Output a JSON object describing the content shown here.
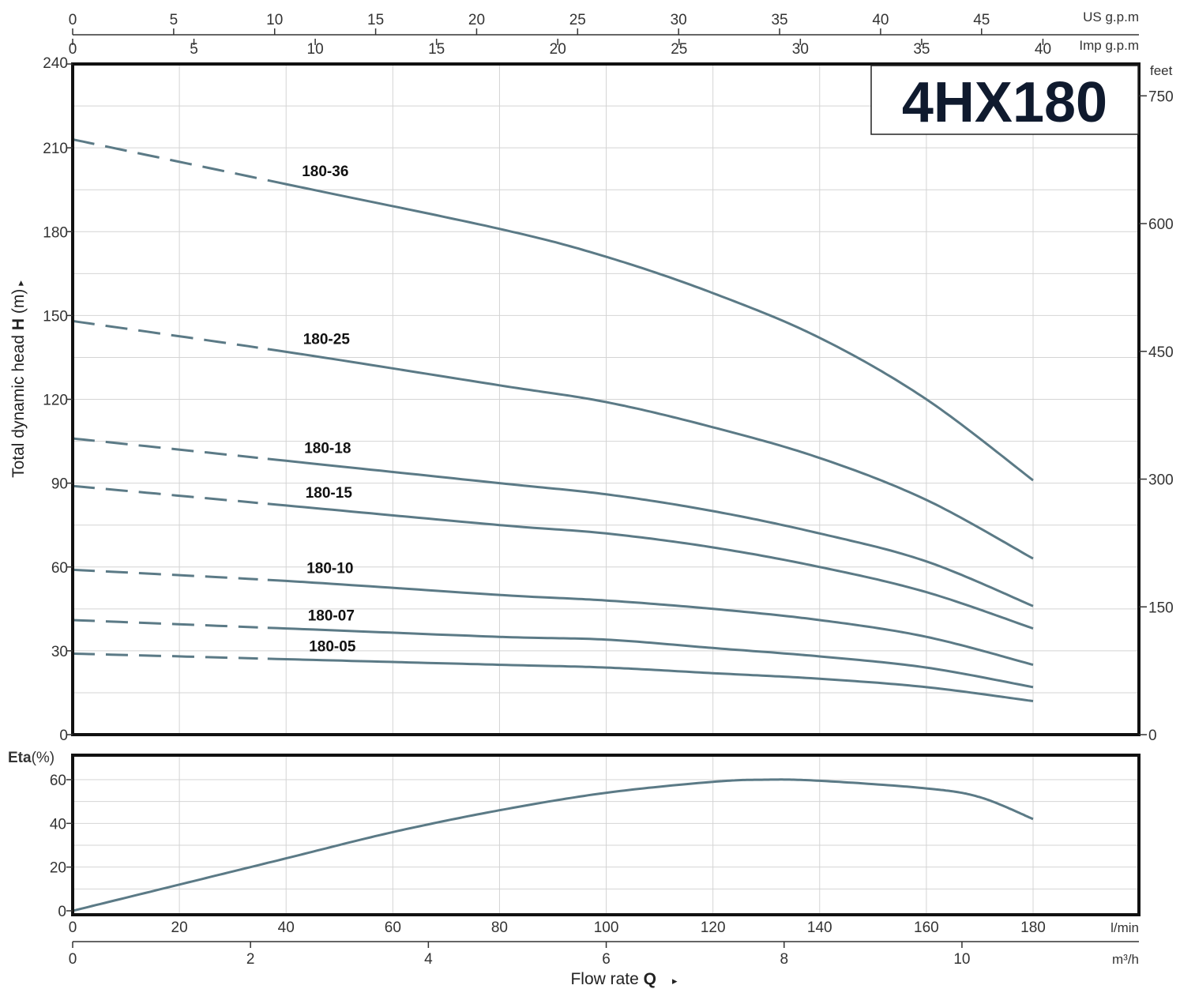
{
  "title": "4HX180",
  "chart_data": [
    {
      "type": "line",
      "panel": "head",
      "ylabel_prefix": "Total dynamic head ",
      "ylabel_bold": "H",
      "ylabel_suffix": " (m)",
      "ylabel_arrow": "▸",
      "ylim": [
        0,
        240
      ],
      "yticks": [
        0,
        30,
        60,
        90,
        120,
        150,
        180,
        210,
        240
      ],
      "secondary_y_unit": "feet",
      "secondary_yticks": [
        0,
        150,
        300,
        450,
        600,
        750
      ],
      "xlim": [
        0,
        200
      ],
      "grid": true,
      "series": [
        {
          "name": "180-36",
          "x": [
            0,
            40,
            80,
            100,
            120,
            140,
            160,
            180
          ],
          "y": [
            213,
            197,
            181,
            171,
            158,
            142,
            120,
            91
          ],
          "dashed_until": 35
        },
        {
          "name": "180-25",
          "x": [
            0,
            40,
            80,
            100,
            120,
            140,
            160,
            180
          ],
          "y": [
            148,
            137,
            125,
            119,
            110,
            99,
            84,
            63
          ],
          "dashed_until": 35
        },
        {
          "name": "180-18",
          "x": [
            0,
            40,
            80,
            100,
            120,
            140,
            160,
            180
          ],
          "y": [
            106,
            98,
            90,
            86,
            80,
            72,
            62,
            46
          ],
          "dashed_until": 35
        },
        {
          "name": "180-15",
          "x": [
            0,
            40,
            80,
            100,
            120,
            140,
            160,
            180
          ],
          "y": [
            89,
            82,
            75,
            72,
            67,
            60,
            51,
            38
          ],
          "dashed_until": 35
        },
        {
          "name": "180-10",
          "x": [
            0,
            40,
            80,
            100,
            120,
            140,
            160,
            180
          ],
          "y": [
            59,
            55,
            50,
            48,
            45,
            41,
            35,
            25
          ],
          "dashed_until": 35
        },
        {
          "name": "180-07",
          "x": [
            0,
            40,
            80,
            100,
            120,
            140,
            160,
            180
          ],
          "y": [
            41,
            38,
            35,
            34,
            31,
            28,
            24,
            17
          ],
          "dashed_until": 35
        },
        {
          "name": "180-05",
          "x": [
            0,
            40,
            80,
            100,
            120,
            140,
            160,
            180
          ],
          "y": [
            29,
            27,
            25,
            24,
            22,
            20,
            17,
            12
          ],
          "dashed_until": 35
        }
      ]
    },
    {
      "type": "line",
      "panel": "efficiency",
      "ylabel_bold": "Eta",
      "ylabel_suffix": "(%)",
      "ylim": [
        0,
        60
      ],
      "yticks": [
        0,
        20,
        40,
        60
      ],
      "xlim": [
        0,
        200
      ],
      "grid": true,
      "series": [
        {
          "x": [
            0,
            20,
            40,
            60,
            80,
            100,
            120,
            130,
            140,
            160,
            170,
            180
          ],
          "y": [
            0,
            12,
            24,
            36,
            46,
            54,
            59,
            60,
            59.5,
            56,
            52,
            42
          ]
        }
      ]
    }
  ],
  "axes": {
    "lmin": {
      "unit": "l/min",
      "ticks": [
        0,
        20,
        40,
        60,
        80,
        100,
        120,
        140,
        160,
        180
      ]
    },
    "m3h": {
      "unit": "m³/h",
      "ticks": [
        0,
        2,
        4,
        6,
        8,
        10
      ]
    },
    "usgpm": {
      "unit": "US g.p.m",
      "ticks": [
        0,
        5,
        10,
        15,
        20,
        25,
        30,
        35,
        40,
        45
      ]
    },
    "impgpm": {
      "unit": "Imp g.p.m",
      "ticks": [
        0,
        5,
        10,
        15,
        20,
        25,
        30,
        35,
        40
      ]
    },
    "xlabel_prefix": "Flow  rate  ",
    "xlabel_bold": "Q",
    "xlabel_arrow": "▸"
  },
  "colors": {
    "curve": "#5b7a86",
    "frame": "#111111",
    "grid": "#d4d4d4",
    "title": "#0f1a2e"
  }
}
